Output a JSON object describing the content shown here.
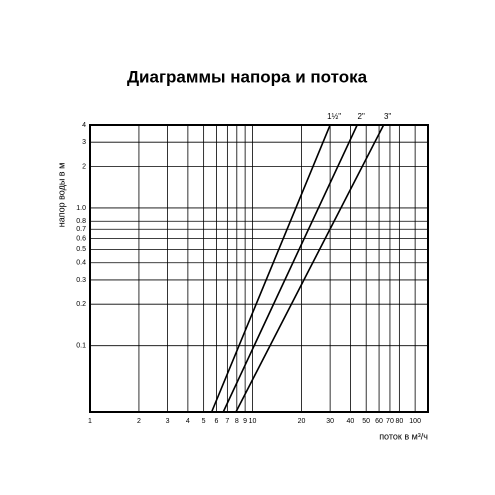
{
  "chart_data": {
    "type": "line",
    "title": "Диаграммы напора и потока",
    "x_label": "поток в м³/ч",
    "y_label": "напор воды в м",
    "log_x": true,
    "log_y": true,
    "grid": true,
    "xlim": [
      1,
      120
    ],
    "ylim": [
      0.033,
      4
    ],
    "xticks": [
      1,
      2,
      3,
      4,
      5,
      6,
      7,
      8,
      9,
      10,
      20,
      30,
      40,
      50,
      60,
      70,
      80,
      100
    ],
    "yticks": [
      0.1,
      0.2,
      0.3,
      0.4,
      0.5,
      0.6,
      0.7,
      0.8,
      {
        "value": 1,
        "label": "1.0"
      },
      2,
      3,
      4
    ],
    "series": [
      {
        "name": "1½\"",
        "color": "#000000",
        "x": [
          5.6,
          30
        ],
        "values": [
          0.033,
          4
        ]
      },
      {
        "name": "2\"",
        "color": "#000000",
        "x": [
          6.6,
          44
        ],
        "values": [
          0.033,
          4
        ]
      },
      {
        "name": "3\"",
        "color": "#000000",
        "x": [
          7.9,
          64
        ],
        "values": [
          0.033,
          4
        ]
      }
    ]
  }
}
